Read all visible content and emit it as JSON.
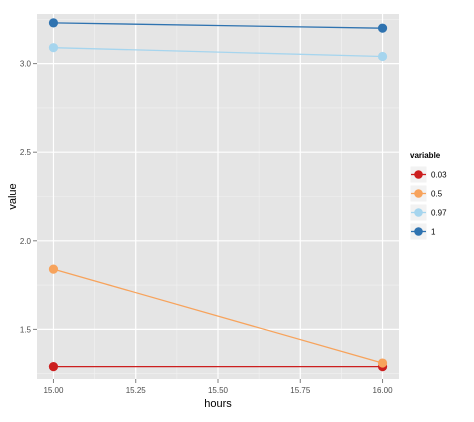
{
  "chart_data": {
    "type": "line",
    "xlabel": "hours",
    "ylabel": "value",
    "xlim": [
      14.95,
      16.05
    ],
    "ylim": [
      1.22,
      3.28
    ],
    "x_ticks": [
      15.0,
      15.25,
      15.5,
      15.75,
      16.0
    ],
    "x_tick_labels": [
      "15.00",
      "15.25",
      "15.50",
      "15.75",
      "16.00"
    ],
    "y_ticks": [
      1.5,
      2.0,
      2.5,
      3.0
    ],
    "y_tick_labels": [
      "1.5",
      "2.0",
      "2.5",
      "3.0"
    ],
    "grid": true,
    "legend": {
      "title": "variable",
      "position": "right"
    },
    "series": [
      {
        "name": "0.03",
        "color": "#cc1f1f",
        "x": [
          15.0,
          16.0
        ],
        "values": [
          1.29,
          1.29
        ]
      },
      {
        "name": "0.5",
        "color": "#f7a35c",
        "x": [
          15.0,
          16.0
        ],
        "values": [
          1.84,
          1.31
        ]
      },
      {
        "name": "0.97",
        "color": "#a6d5ee",
        "x": [
          15.0,
          16.0
        ],
        "values": [
          3.09,
          3.04
        ]
      },
      {
        "name": "1",
        "color": "#2f73b0",
        "x": [
          15.0,
          16.0
        ],
        "values": [
          3.23,
          3.2
        ]
      }
    ],
    "colors": {
      "panel_bg": "#e5e5e5",
      "grid_major": "#ffffff",
      "grid_minor": "#f2f2f2",
      "axis_text": "#4d4d4d"
    }
  }
}
